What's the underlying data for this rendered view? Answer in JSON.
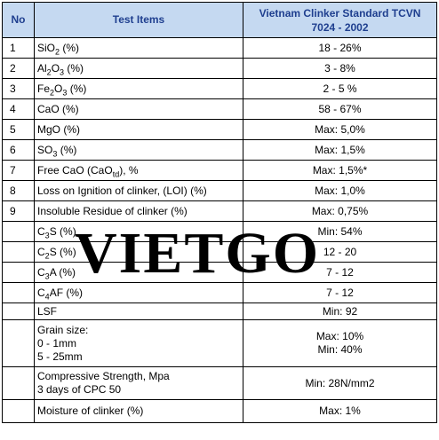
{
  "header": {
    "no": "No",
    "items": "Test Items",
    "standard_line1": "Vietnam Clinker Standard TCVN",
    "standard_line2": "7024 - 2002"
  },
  "rows": [
    {
      "no": "1",
      "item": "SiO",
      "sub": "2",
      "after": " (%)",
      "value": "18 - 26%"
    },
    {
      "no": "2",
      "item": "Al",
      "sub": "2",
      "mid": "O",
      "sub2": "3",
      "after": " (%)",
      "value": "3 - 8%"
    },
    {
      "no": "3",
      "item": "Fe",
      "sub": "2",
      "mid": "O",
      "sub2": "3",
      "after": " (%)",
      "value": "2 - 5 %"
    },
    {
      "no": "4",
      "item": "CaO (%)",
      "value": "58 -  67%"
    },
    {
      "no": "5",
      "item": "MgO (%)",
      "value": "Max: 5,0%"
    },
    {
      "no": "6",
      "item": "SO",
      "sub": "3",
      "after": " (%)",
      "value": "Max: 1,5%"
    },
    {
      "no": "7",
      "item": "Free CaO (CaO",
      "sub": "td",
      "after": "), %",
      "value": "Max: 1,5%*"
    },
    {
      "no": "8",
      "item": "Loss on Ignition of clinker, (LOI)  (%)",
      "value": "Max: 1,0%"
    },
    {
      "no": "9",
      "item": "Insoluble Residue  of clinker (%)",
      "value": "Max: 0,75%"
    },
    {
      "no": "",
      "item": "C",
      "sub": "3",
      "after": "S (%)",
      "value": "Min: 54%"
    },
    {
      "no": "",
      "item": "C",
      "sub": "2",
      "after": "S (%)",
      "value": "12 - 20"
    },
    {
      "no": "",
      "item": "C",
      "sub": "3",
      "after": "A (%)",
      "value": "7 - 12"
    },
    {
      "no": "",
      "item": "C",
      "sub": "4",
      "after": "AF (%)",
      "value": "7 - 12"
    },
    {
      "no": "",
      "item": "LSF",
      "value": "Min: 92"
    }
  ],
  "grain": {
    "line1": "Grain size:",
    "line2": "0 - 1mm",
    "line3": "5 - 25mm",
    "value1": "Max: 10%",
    "value2": "Min: 40%"
  },
  "compressive": {
    "line1": "Compressive Strength, Mpa",
    "line2": "3 days of CPC 50",
    "value": "Min: 28N/mm2"
  },
  "moisture": {
    "item": "Moisture of clinker (%)",
    "value": "Max: 1%"
  },
  "watermark": "VIETGO"
}
